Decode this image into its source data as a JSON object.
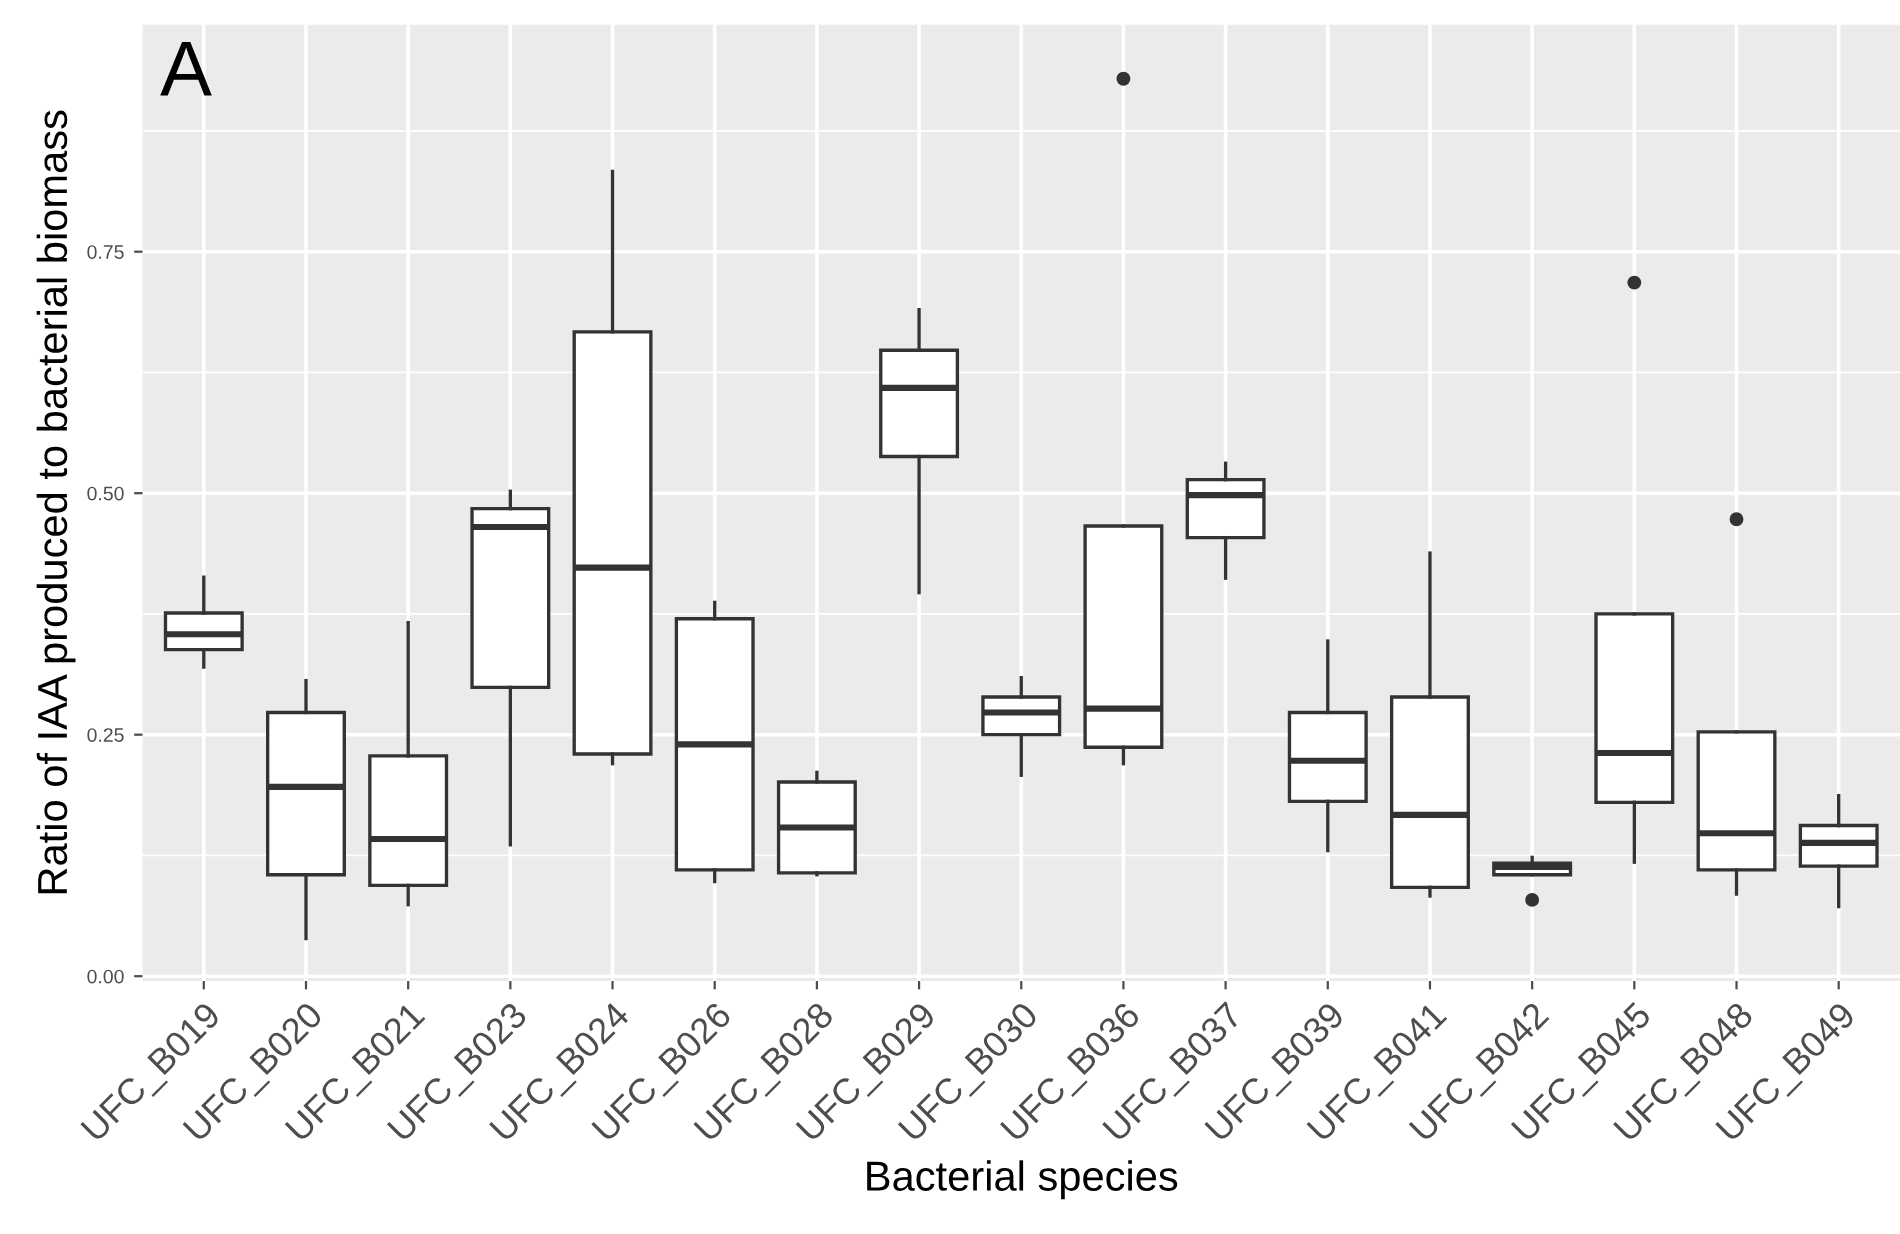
{
  "chart_data": {
    "type": "box",
    "xlabel": "Bacterial species",
    "ylabel": "Ratio of IAA produced to bacterial biomass",
    "annotations": [
      "A"
    ],
    "categories": [
      "UFC_B019",
      "UFC_B020",
      "UFC_B021",
      "UFC_B023",
      "UFC_B024",
      "UFC_B026",
      "UFC_B028",
      "UFC_B029",
      "UFC_B030",
      "UFC_B036",
      "UFC_B037",
      "UFC_B039",
      "UFC_B041",
      "UFC_B042",
      "UFC_B045",
      "UFC_B048",
      "UFC_B049"
    ],
    "ylim": [
      -0.005,
      0.985
    ],
    "yticks": [
      {
        "value": 0,
        "label": "0.00"
      },
      {
        "value": 0.25,
        "label": "0.25"
      },
      {
        "value": 0.5,
        "label": "0.50"
      },
      {
        "value": 0.75,
        "label": "0.75"
      }
    ],
    "grid": true,
    "color": "#ffffff",
    "boxes": [
      {
        "low": 0.32,
        "q1": 0.338,
        "median": 0.354,
        "q3": 0.376,
        "high": 0.413
      },
      {
        "low": 0.039,
        "q1": 0.105,
        "median": 0.196,
        "q3": 0.273,
        "high": 0.306
      },
      {
        "low": 0.074,
        "q1": 0.094,
        "median": 0.142,
        "q3": 0.228,
        "high": 0.366
      },
      {
        "low": 0.136,
        "q1": 0.299,
        "median": 0.465,
        "q3": 0.484,
        "high": 0.502
      },
      {
        "low": 0.22,
        "q1": 0.23,
        "median": 0.423,
        "q3": 0.667,
        "high": 0.833
      },
      {
        "low": 0.098,
        "q1": 0.11,
        "median": 0.24,
        "q3": 0.37,
        "high": 0.387
      },
      {
        "low": 0.105,
        "q1": 0.107,
        "median": 0.154,
        "q3": 0.201,
        "high": 0.211
      },
      {
        "low": 0.397,
        "q1": 0.538,
        "median": 0.609,
        "q3": 0.648,
        "high": 0.69
      },
      {
        "low": 0.208,
        "q1": 0.25,
        "median": 0.273,
        "q3": 0.289,
        "high": 0.309
      },
      {
        "low": 0.22,
        "q1": 0.237,
        "median": 0.277,
        "q3": 0.466,
        "high": 0.466,
        "outliers": [
          0.929
        ]
      },
      {
        "low": 0.412,
        "q1": 0.454,
        "median": 0.498,
        "q3": 0.514,
        "high": 0.531
      },
      {
        "low": 0.13,
        "q1": 0.181,
        "median": 0.223,
        "q3": 0.273,
        "high": 0.347
      },
      {
        "low": 0.083,
        "q1": 0.092,
        "median": 0.167,
        "q3": 0.289,
        "high": 0.438
      },
      {
        "low": 0.105,
        "q1": 0.105,
        "median": 0.113,
        "q3": 0.117,
        "high": 0.123,
        "outliers": [
          0.079
        ]
      },
      {
        "low": 0.118,
        "q1": 0.18,
        "median": 0.231,
        "q3": 0.375,
        "high": 0.375,
        "outliers": [
          0.718
        ]
      },
      {
        "low": 0.085,
        "q1": 0.11,
        "median": 0.148,
        "q3": 0.253,
        "high": 0.253,
        "outliers": [
          0.473
        ]
      },
      {
        "low": 0.072,
        "q1": 0.114,
        "median": 0.138,
        "q3": 0.156,
        "high": 0.187
      }
    ]
  }
}
